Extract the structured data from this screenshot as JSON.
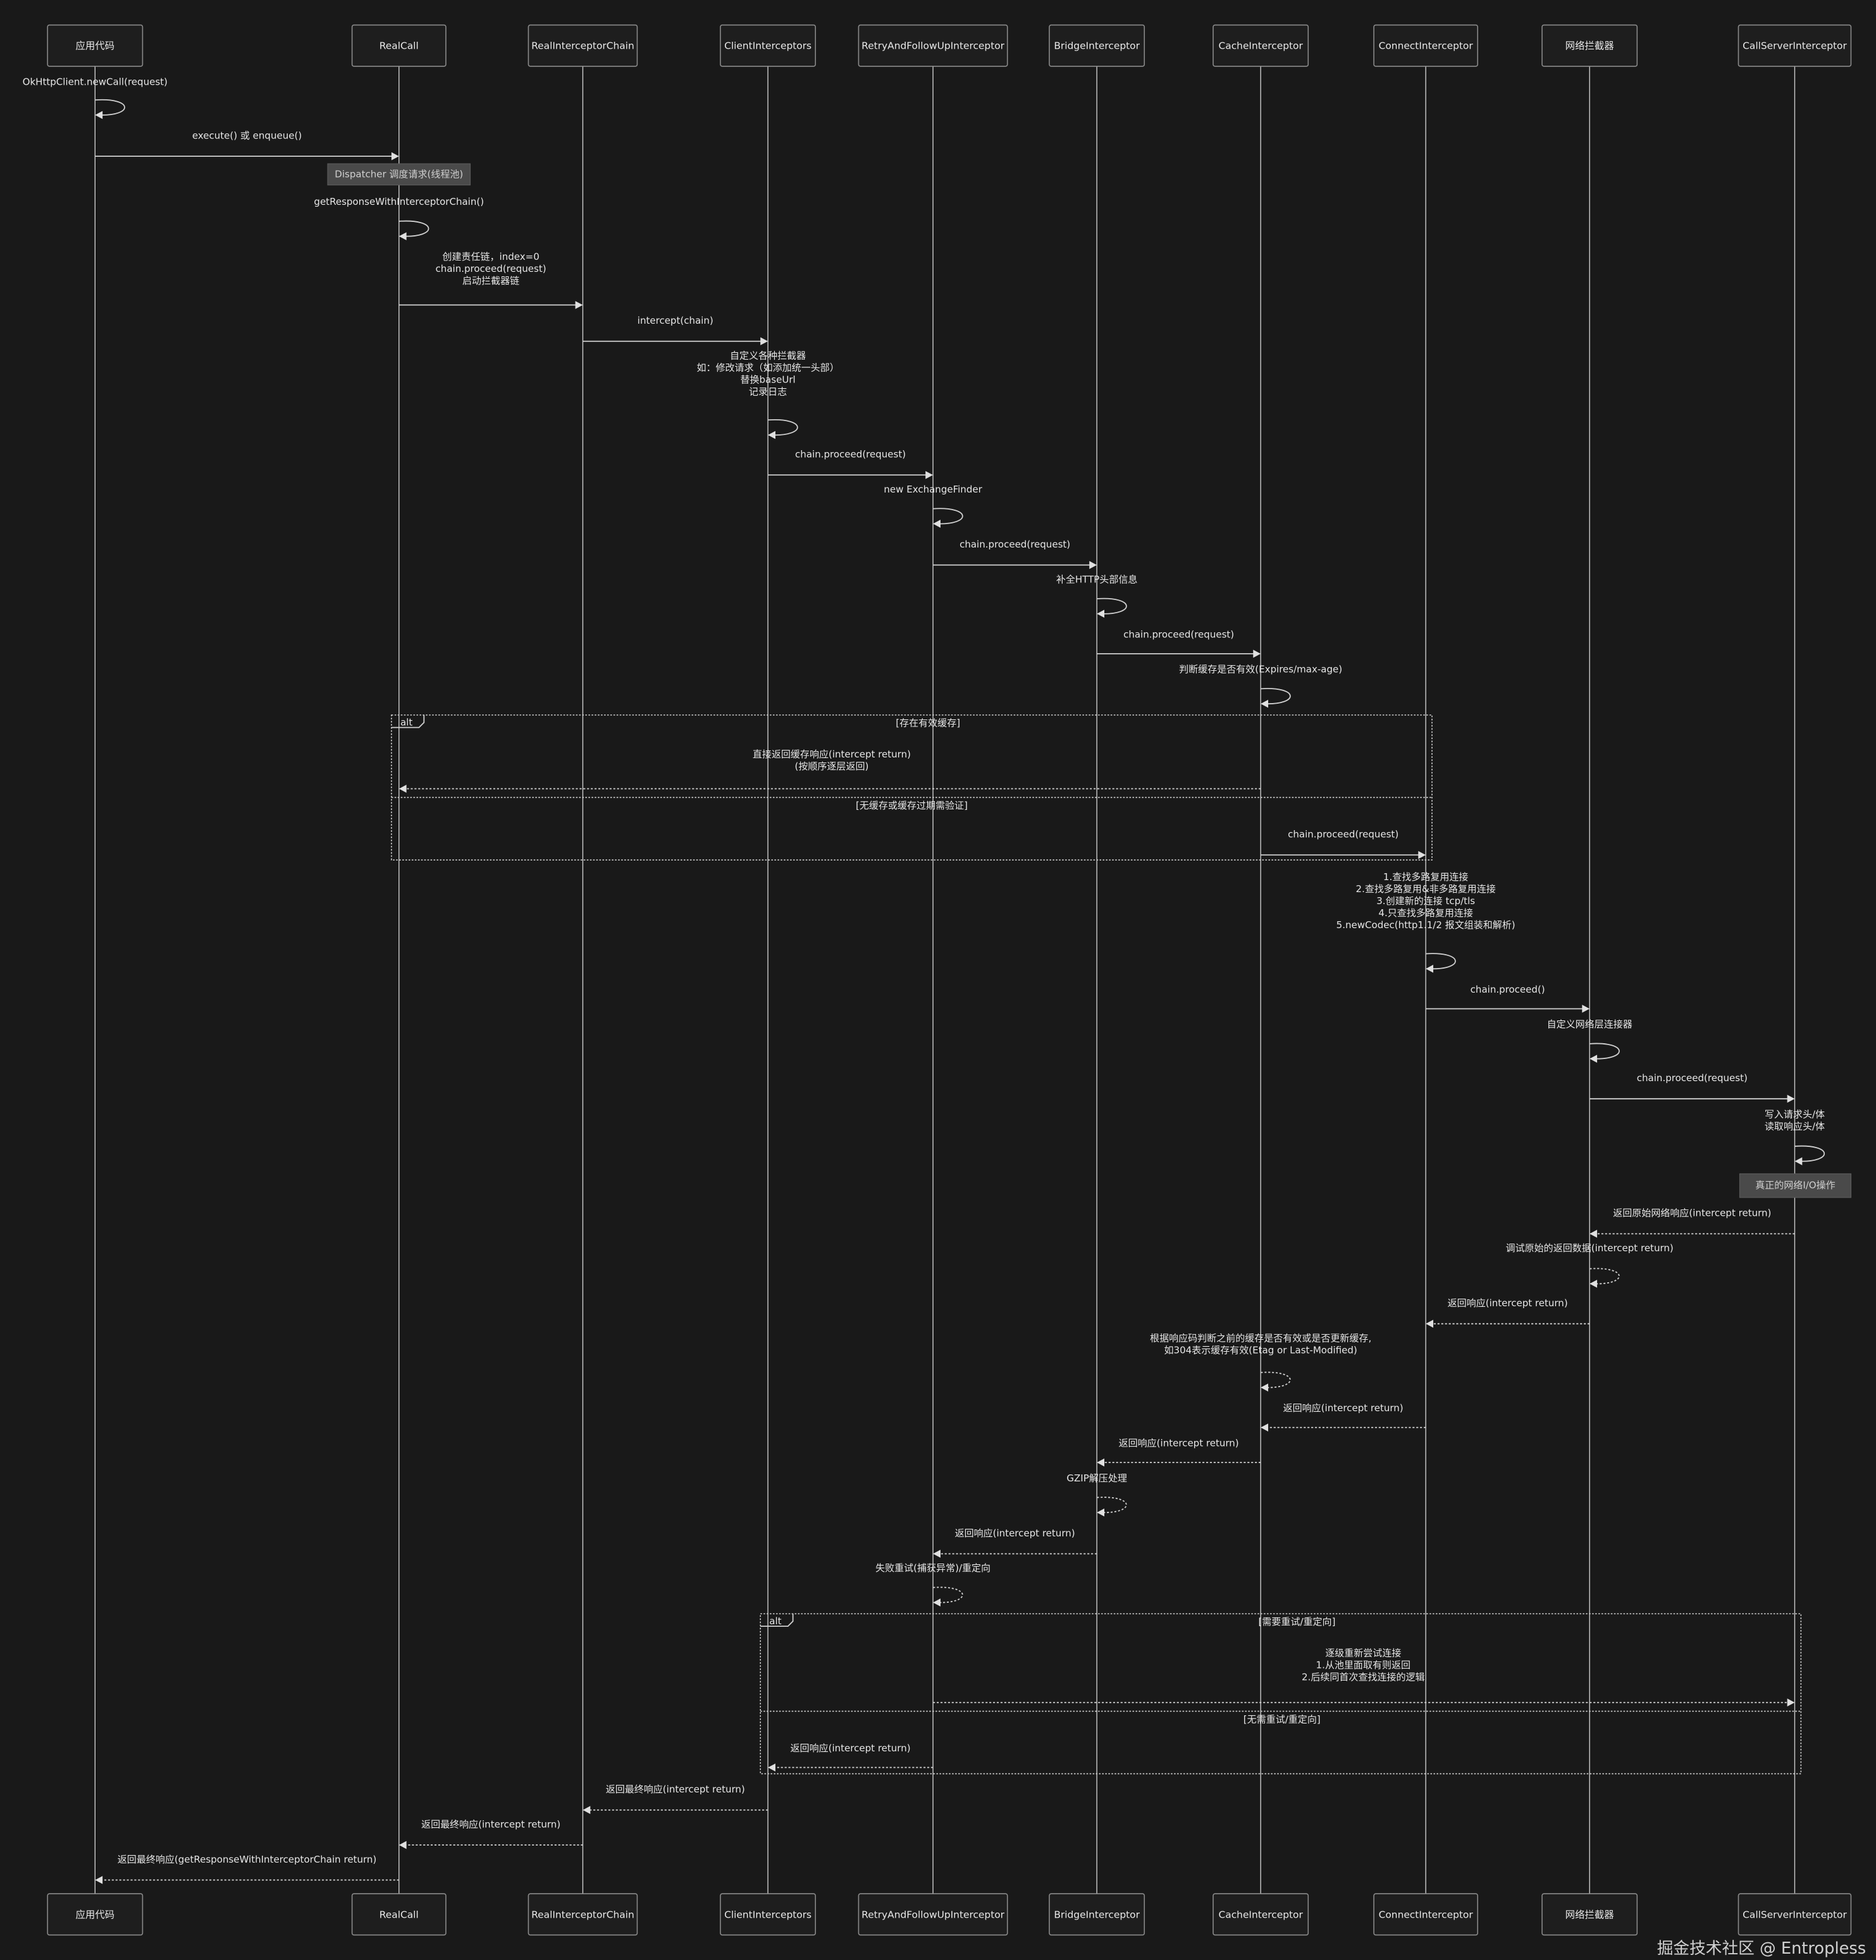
{
  "participants": [
    "应用代码",
    "RealCall",
    "RealInterceptorChain",
    "ClientInterceptors",
    "RetryAndFollowUpInterceptor",
    "BridgeInterceptor",
    "CacheInterceptor",
    "ConnectInterceptor",
    "网络拦截器",
    "CallServerInterceptor"
  ],
  "messages": [
    {
      "from": 0,
      "to": 0,
      "kind": "self",
      "lines": [
        "OkHttpClient.newCall(request)"
      ]
    },
    {
      "from": 0,
      "to": 1,
      "kind": "sync",
      "lines": [
        "execute() 或 enqueue()"
      ]
    },
    {
      "from": 1,
      "to": 1,
      "kind": "self",
      "lines": [
        "getResponseWithInterceptorChain()"
      ]
    },
    {
      "from": 1,
      "to": 2,
      "kind": "sync",
      "lines": [
        "创建责任链，index=0",
        "chain.proceed(request)",
        "启动拦截器链"
      ]
    },
    {
      "from": 2,
      "to": 3,
      "kind": "sync",
      "lines": [
        "intercept(chain)"
      ]
    },
    {
      "from": 3,
      "to": 3,
      "kind": "self",
      "lines": [
        "自定义各种拦截器",
        "如：修改请求（如添加统一头部）",
        "替换baseUrl",
        "记录日志"
      ]
    },
    {
      "from": 3,
      "to": 4,
      "kind": "sync",
      "lines": [
        "chain.proceed(request)"
      ]
    },
    {
      "from": 4,
      "to": 4,
      "kind": "self",
      "lines": [
        "new ExchangeFinder"
      ]
    },
    {
      "from": 4,
      "to": 5,
      "kind": "sync",
      "lines": [
        "chain.proceed(request)"
      ]
    },
    {
      "from": 5,
      "to": 5,
      "kind": "self",
      "lines": [
        "补全HTTP头部信息"
      ]
    },
    {
      "from": 5,
      "to": 6,
      "kind": "sync",
      "lines": [
        "chain.proceed(request)"
      ]
    },
    {
      "from": 6,
      "to": 6,
      "kind": "self",
      "lines": [
        "判断缓存是否有效(Expires/max-age)"
      ]
    },
    {
      "from": 6,
      "to": 1,
      "kind": "return",
      "lines": [
        "直接返回缓存响应(intercept return)",
        "(按顺序逐层返回)"
      ]
    },
    {
      "from": 6,
      "to": 7,
      "kind": "sync",
      "lines": [
        "chain.proceed(request)"
      ]
    },
    {
      "from": 7,
      "to": 7,
      "kind": "self",
      "lines": [
        "1.查找多路复用连接",
        "2.查找多路复用&非多路复用连接",
        "3.创建新的连接 tcp/tls",
        "4.只查找多路复用连接",
        "5.newCodec(http1.1/2 报文组装和解析)"
      ]
    },
    {
      "from": 7,
      "to": 8,
      "kind": "sync",
      "lines": [
        "chain.proceed()"
      ]
    },
    {
      "from": 8,
      "to": 8,
      "kind": "self",
      "lines": [
        "自定义网络层连接器"
      ]
    },
    {
      "from": 8,
      "to": 9,
      "kind": "sync",
      "lines": [
        "chain.proceed(request)"
      ]
    },
    {
      "from": 9,
      "to": 9,
      "kind": "self",
      "lines": [
        "写入请求头/体",
        "读取响应头/体"
      ]
    },
    {
      "from": 9,
      "to": 8,
      "kind": "return",
      "lines": [
        "返回原始网络响应(intercept return)"
      ]
    },
    {
      "from": 8,
      "to": 8,
      "kind": "selfreturn",
      "lines": [
        "调试原始的返回数据(intercept return)"
      ]
    },
    {
      "from": 8,
      "to": 7,
      "kind": "return",
      "lines": [
        "返回响应(intercept return)"
      ]
    },
    {
      "from": 6,
      "to": 6,
      "kind": "selfreturn",
      "lines": [
        "根据响应码判断之前的缓存是否有效或是否更新缓存,",
        "如304表示缓存有效(Etag or Last-Modified)"
      ]
    },
    {
      "from": 7,
      "to": 6,
      "kind": "return",
      "lines": [
        "返回响应(intercept return)"
      ]
    },
    {
      "from": 6,
      "to": 5,
      "kind": "return",
      "lines": [
        "返回响应(intercept return)"
      ]
    },
    {
      "from": 5,
      "to": 5,
      "kind": "selfreturn",
      "lines": [
        "GZIP解压处理"
      ]
    },
    {
      "from": 5,
      "to": 4,
      "kind": "return",
      "lines": [
        "返回响应(intercept return)"
      ]
    },
    {
      "from": 4,
      "to": 4,
      "kind": "selfreturn",
      "lines": [
        "失败重试(捕获异常)/重定向"
      ]
    },
    {
      "from": 4,
      "to": 9,
      "kind": "return",
      "lines": [
        "逐级重新尝试连接",
        "1.从池里面取有则返回",
        "2.后续同首次查找连接的逻辑"
      ]
    },
    {
      "from": 4,
      "to": 3,
      "kind": "return",
      "lines": [
        "返回响应(intercept return)"
      ]
    },
    {
      "from": 3,
      "to": 2,
      "kind": "return",
      "lines": [
        "返回最终响应(intercept return)"
      ]
    },
    {
      "from": 2,
      "to": 1,
      "kind": "return",
      "lines": [
        "返回最终响应(intercept return)"
      ]
    },
    {
      "from": 1,
      "to": 0,
      "kind": "return",
      "lines": [
        "返回最终响应(getResponseWithInterceptorChain return)"
      ]
    }
  ],
  "notes": [
    {
      "over": 1,
      "text": "Dispatcher 调度请求(线程池)"
    },
    {
      "over": 9,
      "text": "真正的网络I/O操作"
    }
  ],
  "frames": [
    {
      "label": "alt",
      "conditions": [
        "[存在有效缓存]",
        "[无缓存或缓存过期需验证]"
      ]
    },
    {
      "label": "alt",
      "conditions": [
        "[需要重试/重定向]",
        "[无需重试/重定向]"
      ]
    }
  ],
  "watermark": "掘金技术社区 @ Entropless",
  "colors": {
    "background": "#191919",
    "line": "#d0d0d0",
    "note": "#4a4a4a"
  }
}
